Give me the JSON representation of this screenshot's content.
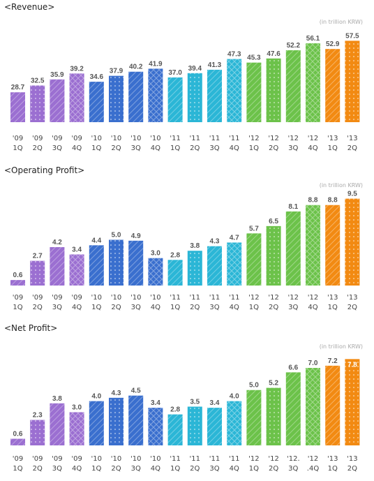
{
  "colors": {
    "purple": "#9b6fd1",
    "blue": "#3a6fce",
    "teal": "#2bb6d6",
    "green": "#6cc24a",
    "orange": "#f28a12"
  },
  "chart_data": [
    {
      "type": "bar",
      "title": "<Revenue>",
      "unit": "(in trillion KRW)",
      "categories": [
        "'09 1Q",
        "'09 2Q",
        "'09 3Q",
        "'09 4Q",
        "'10 1Q",
        "'10 2Q",
        "'10 3Q",
        "'10 4Q",
        "'11 1Q",
        "'11 2Q",
        "'11 3Q",
        "'11 4Q",
        "'12 1Q",
        "'12 2Q",
        "'12 3Q",
        "'12 4Q",
        "'13 1Q",
        "'13 2Q"
      ],
      "tick_lines": [
        [
          "'09",
          "1Q"
        ],
        [
          "'09",
          "2Q"
        ],
        [
          "'09",
          "3Q"
        ],
        [
          "'09",
          "4Q"
        ],
        [
          "'10",
          "1Q"
        ],
        [
          "'10",
          "2Q"
        ],
        [
          "'10",
          "3Q"
        ],
        [
          "'10",
          "4Q"
        ],
        [
          "'11",
          "1Q"
        ],
        [
          "'11",
          "2Q"
        ],
        [
          "'11",
          "3Q"
        ],
        [
          "'11",
          "4Q"
        ],
        [
          "'12",
          "1Q"
        ],
        [
          "'12",
          "2Q"
        ],
        [
          "'12",
          "3Q"
        ],
        [
          "'12",
          "4Q"
        ],
        [
          "'13",
          "1Q"
        ],
        [
          "'13",
          "2Q"
        ]
      ],
      "values": [
        28.7,
        32.5,
        35.9,
        39.2,
        34.6,
        37.9,
        40.2,
        41.9,
        37.0,
        39.4,
        41.3,
        47.3,
        45.3,
        47.6,
        52.2,
        56.1,
        52.9,
        57.5
      ],
      "labels": [
        "28.7",
        "32.5",
        "35.9",
        "39.2",
        "34.6",
        "37.9",
        "40.2",
        "41.9",
        "37.0",
        "39.4",
        "41.3",
        "47.3",
        "45.3",
        "47.6",
        "52.2",
        "56.1",
        "52.9",
        "57.5"
      ],
      "ylim": [
        12,
        60
      ],
      "xlabel": "",
      "ylabel": "",
      "grid": false
    },
    {
      "type": "bar",
      "title": "<Operating Profit>",
      "unit": "(in trillion KRW)",
      "categories": [
        "'09 1Q",
        "'09 2Q",
        "'09 3Q",
        "'09 4Q",
        "'10 1Q",
        "'10 2Q",
        "'10 3Q",
        "'10 4Q",
        "'11 1Q",
        "'11 2Q",
        "'11 3Q",
        "'11 4Q",
        "'12 1Q",
        "'12 2Q",
        "'12 3Q",
        "'12 4Q",
        "'13 1Q",
        "'13 2Q"
      ],
      "tick_lines": [
        [
          "'09",
          "1Q"
        ],
        [
          "'09",
          "2Q"
        ],
        [
          "'09",
          "3Q"
        ],
        [
          "'09",
          "4Q"
        ],
        [
          "'10",
          "1Q"
        ],
        [
          "'10",
          "2Q"
        ],
        [
          "'10",
          "3Q"
        ],
        [
          "'10",
          "4Q"
        ],
        [
          "'11",
          "1Q"
        ],
        [
          "'11",
          "2Q"
        ],
        [
          "'11",
          "3Q"
        ],
        [
          "'11",
          "4Q"
        ],
        [
          "'12",
          "1Q"
        ],
        [
          "'12",
          "2Q"
        ],
        [
          "'12",
          "3Q"
        ],
        [
          "'12",
          "4Q"
        ],
        [
          "'13",
          "1Q"
        ],
        [
          "'13",
          "2Q"
        ]
      ],
      "values": [
        0.6,
        2.7,
        4.2,
        3.4,
        4.4,
        5.0,
        4.9,
        3.0,
        2.8,
        3.8,
        4.3,
        4.7,
        5.7,
        6.5,
        8.1,
        8.8,
        8.8,
        9.5
      ],
      "labels": [
        "0.6",
        "2.7",
        "4.2",
        "3.4",
        "4.4",
        "5.0",
        "4.9",
        "3.0",
        "2.8",
        "3.8",
        "4.3",
        "4.7",
        "5.7",
        "6.5",
        "8.1",
        "8.8",
        "8.8",
        "9.5"
      ],
      "ylim": [
        0,
        10
      ],
      "xlabel": "",
      "ylabel": "",
      "grid": false
    },
    {
      "type": "bar",
      "title": "<Net Profit>",
      "unit": "(in trillion KRW)",
      "categories": [
        "'09 1Q",
        "'09 2Q",
        "'09 3Q",
        "'09 4Q",
        "'10 1Q",
        "'10 2Q",
        "'10 3Q",
        "'10 4Q",
        "'11 1Q",
        "'11 2Q",
        "'11 3Q",
        "'11 4Q",
        "'12 1Q",
        "'12 2Q",
        "'12. 3Q",
        "'12 .4Q",
        "'13 1Q",
        "'13 2Q"
      ],
      "tick_lines": [
        [
          "'09",
          "1Q"
        ],
        [
          "'09",
          "2Q"
        ],
        [
          "'09",
          "3Q"
        ],
        [
          "'09",
          "4Q"
        ],
        [
          "'10",
          "1Q"
        ],
        [
          "'10",
          "2Q"
        ],
        [
          "'10",
          "3Q"
        ],
        [
          "'10",
          "4Q"
        ],
        [
          "'11",
          "1Q"
        ],
        [
          "'11",
          "2Q"
        ],
        [
          "'11",
          "3Q"
        ],
        [
          "'11",
          "4Q"
        ],
        [
          "'12",
          "1Q"
        ],
        [
          "'12",
          "2Q"
        ],
        [
          "'12.",
          "3Q"
        ],
        [
          "'12",
          ".4Q"
        ],
        [
          "'13",
          "1Q"
        ],
        [
          "'13",
          "2Q"
        ]
      ],
      "values": [
        0.6,
        2.3,
        3.8,
        3.0,
        4.0,
        4.3,
        4.5,
        3.4,
        2.8,
        3.5,
        3.4,
        4.0,
        5.0,
        5.2,
        6.6,
        7.0,
        7.2,
        7.8
      ],
      "labels": [
        "0.6",
        "2.3",
        "3.8",
        "3.0",
        "4.0",
        "4.3",
        "4.5",
        "3.4",
        "2.8",
        "3.5",
        "3.4",
        "4.0",
        "5.0",
        "5.2",
        "6.6",
        "7.0",
        "7.2",
        "7.8"
      ],
      "ylim": [
        0,
        8.2
      ],
      "xlabel": "",
      "ylabel": "",
      "grid": false
    }
  ]
}
